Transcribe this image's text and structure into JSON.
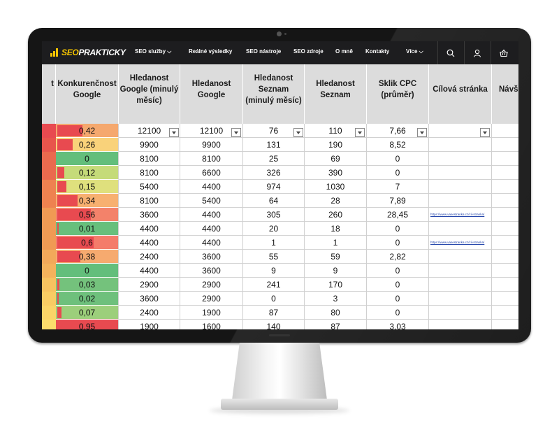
{
  "nav": {
    "logo_text_prefix": "SEO",
    "logo_text_suffix": "PRAKTICKY",
    "items": [
      {
        "label": "SEO služby ⌵"
      },
      {
        "label": "Reálné výsledky"
      },
      {
        "label": "SEO nástroje"
      },
      {
        "label": "SEO zdroje"
      },
      {
        "label": "O mně"
      },
      {
        "label": "Kontakty"
      },
      {
        "label": "Více ⌵"
      }
    ],
    "icons": [
      "search-icon",
      "user-icon",
      "basket-icon"
    ]
  },
  "table": {
    "first_col_fragment": "t",
    "columns": [
      {
        "label": "Konkurenčnost Google"
      },
      {
        "label": "Hledanost Google (minulý měsíc)"
      },
      {
        "label": "Hledanost Google"
      },
      {
        "label": "Hledanost Seznam (minulý měsíc)"
      },
      {
        "label": "Hledanost Seznam"
      },
      {
        "label": "Sklik CPC (průměr)"
      },
      {
        "label": "Cílová stránka"
      },
      {
        "label": "Návš"
      }
    ],
    "sort_glyph": "↓",
    "rows": [
      {
        "k": "0,42",
        "kv": 0.42,
        "kc": "#f5a86e",
        "sc": "#e84a50",
        "g1": "12100",
        "g2": "12100",
        "s1": "76",
        "s2": "110",
        "cpc": "7,66",
        "url": ""
      },
      {
        "k": "0,26",
        "kv": 0.26,
        "kc": "#f9d27a",
        "sc": "#e8554c",
        "g1": "9900",
        "g2": "9900",
        "s1": "131",
        "s2": "190",
        "cpc": "8,52",
        "url": ""
      },
      {
        "k": "0",
        "kv": 0,
        "kc": "#63be7b",
        "sc": "#ea6a4e",
        "g1": "8100",
        "g2": "8100",
        "s1": "25",
        "s2": "69",
        "cpc": "0",
        "url": ""
      },
      {
        "k": "0,12",
        "kv": 0.12,
        "kc": "#c5db79",
        "sc": "#ea6a4e",
        "g1": "8100",
        "g2": "6600",
        "s1": "326",
        "s2": "390",
        "cpc": "0",
        "url": ""
      },
      {
        "k": "0,15",
        "kv": 0.15,
        "kc": "#dfe07d",
        "sc": "#ee8250",
        "g1": "5400",
        "g2": "4400",
        "s1": "974",
        "s2": "1030",
        "cpc": "7",
        "url": ""
      },
      {
        "k": "0,34",
        "kv": 0.34,
        "kc": "#f7b070",
        "sc": "#ee8250",
        "g1": "8100",
        "g2": "5400",
        "s1": "64",
        "s2": "28",
        "cpc": "7,89",
        "url": ""
      },
      {
        "k": "0,56",
        "kv": 0.56,
        "kc": "#f3826a",
        "sc": "#f09a54",
        "g1": "3600",
        "g2": "4400",
        "s1": "305",
        "s2": "260",
        "cpc": "28,45",
        "url": "https://www.vasestranka.cz/cil-stranka/"
      },
      {
        "k": "0,01",
        "kv": 0.01,
        "kc": "#67bf7c",
        "sc": "#f09a54",
        "g1": "4400",
        "g2": "4400",
        "s1": "20",
        "s2": "18",
        "cpc": "0",
        "url": ""
      },
      {
        "k": "0,6",
        "kv": 0.6,
        "kc": "#f47c6a",
        "sc": "#f09a54",
        "g1": "4400",
        "g2": "4400",
        "s1": "1",
        "s2": "1",
        "cpc": "0",
        "url": "https://www.vasestranka.cz/cil-stranka/"
      },
      {
        "k": "0,38",
        "kv": 0.38,
        "kc": "#f6aa6f",
        "sc": "#f2a95a",
        "g1": "2400",
        "g2": "3600",
        "s1": "55",
        "s2": "59",
        "cpc": "2,82",
        "url": ""
      },
      {
        "k": "0",
        "kv": 0,
        "kc": "#63be7b",
        "sc": "#f4b25c",
        "g1": "4400",
        "g2": "3600",
        "s1": "9",
        "s2": "9",
        "cpc": "0",
        "url": ""
      },
      {
        "k": "0,03",
        "kv": 0.03,
        "kc": "#74c27c",
        "sc": "#f6c260",
        "g1": "2900",
        "g2": "2900",
        "s1": "241",
        "s2": "170",
        "cpc": "0",
        "url": ""
      },
      {
        "k": "0,02",
        "kv": 0.02,
        "kc": "#6ec07c",
        "sc": "#f8cc64",
        "g1": "3600",
        "g2": "2900",
        "s1": "0",
        "s2": "3",
        "cpc": "0",
        "url": ""
      },
      {
        "k": "0,07",
        "kv": 0.07,
        "kc": "#9ccf7b",
        "sc": "#fad468",
        "g1": "2400",
        "g2": "1900",
        "s1": "87",
        "s2": "80",
        "cpc": "0",
        "url": ""
      },
      {
        "k": "0,95",
        "kv": 0.95,
        "kc": "#e84a50",
        "sc": "#fbdc6c",
        "g1": "1900",
        "g2": "1600",
        "s1": "140",
        "s2": "87",
        "cpc": "3,03",
        "url": ""
      }
    ]
  }
}
